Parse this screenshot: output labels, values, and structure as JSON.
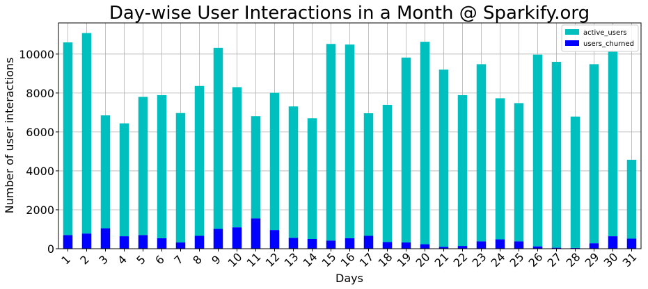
{
  "chart_data": {
    "type": "bar",
    "stacked": true,
    "title": "Day-wise User Interactions in a Month @ Sparkify.org",
    "xlabel": "Days",
    "ylabel": "Number of user interactions",
    "categories": [
      "1",
      "2",
      "3",
      "4",
      "5",
      "6",
      "7",
      "8",
      "9",
      "10",
      "11",
      "12",
      "13",
      "14",
      "15",
      "16",
      "17",
      "18",
      "19",
      "20",
      "21",
      "22",
      "23",
      "24",
      "25",
      "26",
      "27",
      "28",
      "29",
      "30",
      "31"
    ],
    "ylim": [
      0,
      11600
    ],
    "yticks": [
      0,
      2000,
      4000,
      6000,
      8000,
      10000
    ],
    "grid": true,
    "legend_position": "top-right",
    "series": [
      {
        "name": "active_users",
        "color": "#00bfbf",
        "values": [
          9900,
          10300,
          5800,
          5800,
          7100,
          7350,
          6650,
          7700,
          9300,
          7200,
          5250,
          7050,
          6750,
          6200,
          10100,
          9950,
          6300,
          7050,
          9500,
          10400,
          9100,
          7750,
          9100,
          7250,
          7100,
          9850,
          9550,
          6750,
          9200,
          9500,
          4050
        ]
      },
      {
        "name": "users_churned",
        "color": "#0000ff",
        "values": [
          700,
          780,
          1050,
          640,
          700,
          540,
          320,
          660,
          1020,
          1100,
          1560,
          960,
          560,
          500,
          420,
          540,
          660,
          340,
          320,
          230,
          100,
          140,
          380,
          480,
          380,
          120,
          50,
          40,
          280,
          640,
          520
        ]
      }
    ]
  }
}
